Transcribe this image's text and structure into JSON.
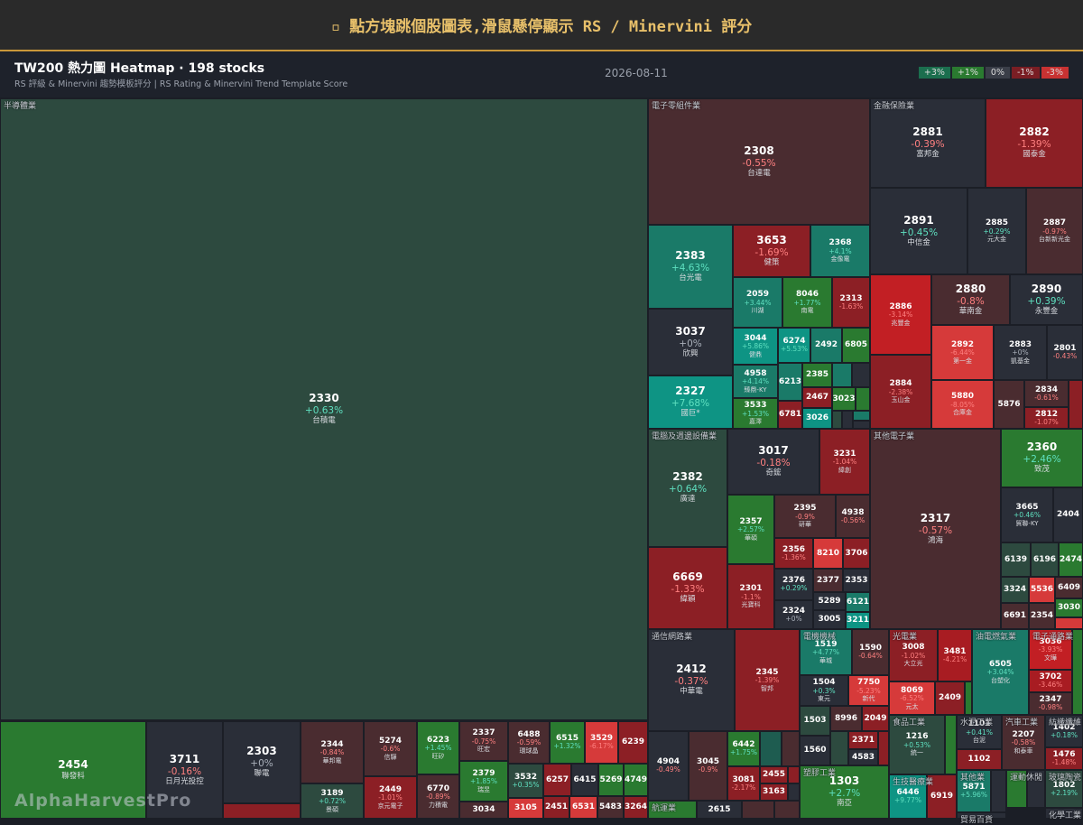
{
  "header": {
    "title": "▫ 點方塊跳個股圖表,滑鼠懸停顯示 RS / Minervini 評分"
  },
  "toolbar": {
    "title": "TW200 熱力圖 Heatmap · 198 stocks",
    "subtitle": "RS 評級 & Minervini 趨勢模板評分 | RS Rating & Minervini Trend Template Score",
    "date": "2026-08-11",
    "legend": [
      {
        "label": "+3%",
        "color": "#1b6e4e"
      },
      {
        "label": "+1%",
        "color": "#2a7a30"
      },
      {
        "label": "0%",
        "color": "#3a3e48"
      },
      {
        "label": "-1%",
        "color": "#7a1e24"
      },
      {
        "label": "-3%",
        "color": "#c83232"
      }
    ]
  },
  "watermark": "AlphaHarvestPro",
  "sectors": [
    {
      "name": "半導體業",
      "tiles": [
        {
          "code": "2330",
          "change": "+0.63%",
          "name": "台積電",
          "color": "#2d4a3f"
        },
        {
          "code": "2454",
          "name": "聯發科",
          "color": "#2a7a30"
        },
        {
          "code": "3711",
          "change": "-0.16%",
          "name": "日月光投控",
          "color": "#2a2e38"
        },
        {
          "code": "2303",
          "change": "+0%",
          "name": "聯電",
          "color": "#2a2e38"
        },
        {
          "color": "#8c1f25"
        },
        {
          "code": "2344",
          "change": "-0.84%",
          "name": "華邦電",
          "color": "#4a2c30"
        },
        {
          "code": "3189",
          "change": "+0.72%",
          "name": "景碩",
          "color": "#2d4a3f"
        },
        {
          "code": "5274",
          "change": "-0.6%",
          "name": "信驊",
          "color": "#4a2c30"
        },
        {
          "code": "2449",
          "change": "-1.01%",
          "name": "京元電子",
          "color": "#8c1f25"
        },
        {
          "code": "6223",
          "change": "+1.45%",
          "name": "旺矽",
          "color": "#2a7a30"
        },
        {
          "code": "6770",
          "change": "-0.89%",
          "name": "力積電",
          "color": "#4a2c30"
        },
        {
          "code": "2337",
          "change": "-0.75%",
          "name": "旺宏",
          "color": "#4a2c30"
        },
        {
          "code": "2379",
          "change": "+1.85%",
          "name": "瑞昱",
          "color": "#2a7a30"
        },
        {
          "code": "3034",
          "color": "#4a2c30"
        },
        {
          "code": "6488",
          "change": "-0.59%",
          "name": "環球晶",
          "color": "#4a2c30"
        },
        {
          "code": "3532",
          "change": "+0.35%",
          "color": "#2d4a3f"
        },
        {
          "code": "3105",
          "color": "#d63a3a"
        },
        {
          "code": "6515",
          "change": "+1.32%",
          "color": "#2a7a30"
        },
        {
          "code": "3529",
          "change": "-6.17%",
          "color": "#d63a3a"
        },
        {
          "code": "6239",
          "color": "#8c1f25"
        },
        {
          "code": "6257",
          "color": "#8c1f25"
        },
        {
          "code": "6415",
          "color": "#2a2e38"
        },
        {
          "code": "5269",
          "color": "#2a7a30"
        },
        {
          "code": "4749",
          "color": "#2a7a30"
        },
        {
          "code": "2451",
          "color": "#8c1f25"
        },
        {
          "code": "6531",
          "color": "#d63a3a"
        },
        {
          "code": "5483",
          "color": "#4a2c30"
        },
        {
          "code": "3264",
          "color": "#8c1f25"
        }
      ]
    },
    {
      "name": "電子零組件業",
      "tiles": [
        {
          "code": "2308",
          "change": "-0.55%",
          "name": "台達電",
          "color": "#4a2c30"
        },
        {
          "code": "2383",
          "change": "+4.63%",
          "name": "台光電",
          "color": "#1a7a68"
        },
        {
          "code": "3653",
          "change": "-1.69%",
          "name": "健策",
          "color": "#8c1f25"
        },
        {
          "code": "2368",
          "change": "+4.1%",
          "name": "金像電",
          "color": "#1a7a68"
        },
        {
          "code": "2059",
          "change": "+3.44%",
          "name": "川湖",
          "color": "#1a7a68"
        },
        {
          "code": "8046",
          "change": "+1.77%",
          "name": "南電",
          "color": "#2a7a30"
        },
        {
          "code": "2313",
          "change": "-1.63%",
          "color": "#8c1f25"
        },
        {
          "code": "3037",
          "change": "+0%",
          "name": "欣興",
          "color": "#2a2e38"
        },
        {
          "code": "2327",
          "change": "+7.68%",
          "name": "國巨*",
          "color": "#0e9484"
        },
        {
          "code": "3044",
          "change": "+5.86%",
          "name": "健鼎",
          "color": "#0e9484"
        },
        {
          "code": "6274",
          "change": "+5.53%",
          "color": "#0e9484"
        },
        {
          "code": "2492",
          "color": "#1a7a68"
        },
        {
          "code": "6805",
          "color": "#2a7a30"
        },
        {
          "code": "4958",
          "change": "+4.14%",
          "name": "臻鼎-KY",
          "color": "#1a7a68"
        },
        {
          "code": "3533",
          "change": "+1.53%",
          "name": "嘉澤",
          "color": "#2a7a30"
        },
        {
          "code": "6213",
          "color": "#1a7a68"
        },
        {
          "code": "2385",
          "color": "#2a7a30"
        },
        {
          "color": "#1a7a68"
        },
        {
          "color": "#2a2e38"
        },
        {
          "code": "2467",
          "color": "#8c1f25"
        },
        {
          "code": "3023",
          "color": "#2a7a30"
        },
        {
          "color": "#2a7a30"
        },
        {
          "code": "6781",
          "color": "#8c1f25"
        },
        {
          "code": "3026",
          "color": "#0e9484"
        },
        {
          "color": "#2d4a3f"
        },
        {
          "color": "#2a2e38"
        },
        {
          "color": "#1a7a68"
        },
        {
          "color": "#2a2e38"
        }
      ]
    },
    {
      "name": "金融保險業",
      "tiles": [
        {
          "code": "2881",
          "change": "-0.39%",
          "name": "富邦金",
          "color": "#2a2e38"
        },
        {
          "code": "2882",
          "change": "-1.39%",
          "name": "國泰金",
          "color": "#8c1f25"
        },
        {
          "code": "2891",
          "change": "+0.45%",
          "name": "中信金",
          "color": "#2a2e38"
        },
        {
          "code": "2885",
          "change": "+0.29%",
          "name": "元大金",
          "color": "#2a2e38"
        },
        {
          "code": "2887",
          "change": "-0.97%",
          "name": "台新新光金",
          "color": "#4a2c30"
        },
        {
          "code": "2886",
          "change": "-3.14%",
          "name": "兆豐金",
          "color": "#c21f24"
        },
        {
          "code": "2880",
          "change": "-0.8%",
          "name": "華南金",
          "color": "#4a2c30"
        },
        {
          "code": "2890",
          "change": "+0.39%",
          "name": "永豐金",
          "color": "#2a2e38"
        },
        {
          "code": "2884",
          "change": "-2.38%",
          "name": "玉山金",
          "color": "#8c1f25"
        },
        {
          "code": "2892",
          "change": "-6.44%",
          "name": "第一金",
          "color": "#d63a3a"
        },
        {
          "code": "2883",
          "change": "+0%",
          "name": "凱基金",
          "color": "#2a2e38"
        },
        {
          "code": "2801",
          "change": "-0.43%",
          "color": "#2a2e38"
        },
        {
          "code": "5880",
          "change": "-8.05%",
          "name": "合庫金",
          "color": "#d63a3a"
        },
        {
          "code": "5876",
          "color": "#4a2c30"
        },
        {
          "code": "2834",
          "change": "-0.61%",
          "color": "#4a2c30"
        },
        {
          "code": "2812",
          "change": "-1.07%",
          "color": "#8c1f25"
        },
        {
          "color": "#8c1f25"
        }
      ]
    },
    {
      "name": "電腦及週邊設備業",
      "tiles": [
        {
          "code": "2382",
          "change": "+0.64%",
          "name": "廣達",
          "color": "#2d4a3f"
        },
        {
          "code": "6669",
          "change": "-1.33%",
          "name": "緯穎",
          "color": "#8c1f25"
        },
        {
          "code": "3017",
          "change": "-0.18%",
          "name": "奇鋐",
          "color": "#2a2e38"
        },
        {
          "code": "3231",
          "change": "-1.04%",
          "name": "緯創",
          "color": "#8c1f25"
        },
        {
          "code": "2357",
          "change": "+2.57%",
          "name": "華碩",
          "color": "#2a7a30"
        },
        {
          "code": "2301",
          "change": "-1.1%",
          "name": "光寶科",
          "color": "#8c1f25"
        },
        {
          "code": "2395",
          "change": "-0.9%",
          "name": "研華",
          "color": "#4a2c30"
        },
        {
          "code": "4938",
          "change": "-0.56%",
          "color": "#4a2c30"
        },
        {
          "code": "2356",
          "change": "-1.36%",
          "color": "#8c1f25"
        },
        {
          "code": "8210",
          "color": "#d63a3a"
        },
        {
          "code": "3706",
          "color": "#8c1f25"
        },
        {
          "code": "2376",
          "change": "+0.29%",
          "color": "#2a2e38"
        },
        {
          "code": "2377",
          "color": "#4a2c30"
        },
        {
          "code": "2353",
          "color": "#2a2e38"
        },
        {
          "code": "5289",
          "color": "#2a2e38"
        },
        {
          "code": "6121",
          "color": "#1a7a68"
        },
        {
          "code": "2324",
          "change": "+0%",
          "color": "#2a2e38"
        },
        {
          "code": "3005",
          "color": "#2a2e38"
        },
        {
          "code": "3211",
          "color": "#0e9484"
        }
      ]
    },
    {
      "name": "其他電子業",
      "tiles": [
        {
          "code": "2317",
          "change": "-0.57%",
          "name": "鴻海",
          "color": "#4a2c30"
        },
        {
          "code": "2360",
          "change": "+2.46%",
          "name": "致茂",
          "color": "#2a7a30"
        },
        {
          "code": "3665",
          "change": "+0.46%",
          "name": "貿聯-KY",
          "color": "#2a2e38"
        },
        {
          "code": "2404",
          "color": "#2a2e38"
        },
        {
          "code": "6139",
          "color": "#2d4a3f"
        },
        {
          "code": "6196",
          "color": "#2d4a3f"
        },
        {
          "code": "2474",
          "color": "#2a7a30"
        },
        {
          "code": "3324",
          "color": "#2d4a3f"
        },
        {
          "code": "5536",
          "color": "#d63a3a"
        },
        {
          "code": "6409",
          "color": "#4a2c30"
        },
        {
          "code": "3030",
          "color": "#2a7a30"
        },
        {
          "code": "6691",
          "color": "#4a2c30"
        },
        {
          "code": "2354",
          "color": "#4a2c30"
        },
        {
          "color": "#d63a3a"
        }
      ]
    },
    {
      "name": "通信網路業",
      "tiles": [
        {
          "code": "2412",
          "change": "-0.37%",
          "name": "中華電",
          "color": "#2a2e38"
        },
        {
          "code": "2345",
          "change": "-1.39%",
          "name": "智邦",
          "color": "#8c1f25"
        },
        {
          "code": "4904",
          "change": "-0.49%",
          "color": "#2a2e38"
        },
        {
          "code": "3045",
          "change": "-0.9%",
          "color": "#4a2c30"
        },
        {
          "code": "6442",
          "change": "+1.75%",
          "color": "#2a7a30"
        },
        {
          "color": "#1e5c50"
        },
        {
          "color": "#4a2c30"
        },
        {
          "code": "3081",
          "change": "-2.17%",
          "color": "#8c1f25"
        },
        {
          "code": "2455",
          "color": "#8c1f25"
        },
        {
          "color": "#8c1f25"
        },
        {
          "code": "3163",
          "color": "#8c1f25"
        },
        {
          "color": "#2a2e38"
        }
      ]
    },
    {
      "name": "航運業",
      "tiles": [
        {
          "color": "#2a7a30"
        },
        {
          "code": "2615",
          "color": "#2a2e38"
        },
        {
          "color": "#4a2c30"
        },
        {
          "color": "#4a2c30"
        }
      ]
    },
    {
      "name": "電機機械",
      "tiles": [
        {
          "code": "1519",
          "change": "+4.77%",
          "name": "華城",
          "color": "#1a7a68"
        },
        {
          "code": "1590",
          "change": "-0.64%",
          "color": "#4a2c30"
        },
        {
          "code": "1504",
          "change": "+0.3%",
          "name": "東元",
          "color": "#2a2e38"
        },
        {
          "code": "7750",
          "change": "-5.23%",
          "name": "新代",
          "color": "#d63a3a"
        },
        {
          "code": "1503",
          "color": "#2d4a3f"
        },
        {
          "code": "8996",
          "color": "#4a2c30"
        },
        {
          "code": "2049",
          "color": "#8c1f25"
        },
        {
          "code": "1560",
          "color": "#2a2e38"
        },
        {
          "color": "#2d4a3f"
        },
        {
          "code": "2371",
          "color": "#8c1f25"
        },
        {
          "code": "4583",
          "color": "#2a2e38"
        },
        {
          "color": "#8c1f25"
        }
      ]
    },
    {
      "name": "塑膠工業",
      "tiles": [
        {
          "code": "1303",
          "change": "+2.7%",
          "name": "南亞",
          "color": "#2a7a30"
        }
      ]
    },
    {
      "name": "光電業",
      "tiles": [
        {
          "code": "3008",
          "change": "-1.02%",
          "name": "大立光",
          "color": "#8c1f25"
        },
        {
          "code": "3481",
          "change": "-4.21%",
          "color": "#a81c22"
        },
        {
          "code": "8069",
          "change": "-6.52%",
          "name": "元太",
          "color": "#d63a3a"
        },
        {
          "code": "2409",
          "color": "#8c1f25"
        },
        {
          "color": "#2a7a30"
        }
      ]
    },
    {
      "name": "油電燃氣業",
      "tiles": [
        {
          "code": "6505",
          "change": "+3.04%",
          "name": "台塑化",
          "color": "#1a7a68"
        }
      ]
    },
    {
      "name": "電子通路業",
      "tiles": [
        {
          "code": "3036",
          "change": "-3.93%",
          "name": "文曄",
          "color": "#c21f24"
        },
        {
          "code": "3702",
          "change": "-3.46%",
          "color": "#a81c22"
        },
        {
          "code": "2347",
          "change": "-0.98%",
          "color": "#4a2c30"
        },
        {
          "color": "#2a7a30"
        }
      ]
    },
    {
      "name": "食品工業",
      "tiles": [
        {
          "code": "1216",
          "change": "+0.53%",
          "name": "統一",
          "color": "#2d4a3f"
        },
        {
          "color": "#2a7a30"
        }
      ]
    },
    {
      "name": "生技醫療業",
      "tiles": [
        {
          "code": "6446",
          "change": "+9.77%",
          "color": "#0e9484"
        },
        {
          "code": "6919",
          "color": "#8c1f25"
        }
      ]
    },
    {
      "name": "水泥工業",
      "tiles": [
        {
          "code": "1101",
          "change": "+0.41%",
          "name": "台泥",
          "color": "#2a2e38"
        },
        {
          "code": "1102",
          "color": "#8c1f25"
        }
      ]
    },
    {
      "name": "汽車工業",
      "tiles": [
        {
          "code": "2207",
          "change": "-0.58%",
          "name": "和泰車",
          "color": "#4a2c30"
        }
      ]
    },
    {
      "name": "紡織纖維",
      "tiles": [
        {
          "code": "1402",
          "change": "+0.18%",
          "color": "#2a2e38"
        },
        {
          "code": "1476",
          "change": "-1.48%",
          "color": "#8c1f25"
        }
      ]
    },
    {
      "name": "其他業",
      "tiles": [
        {
          "code": "5871",
          "change": "+5.96%",
          "color": "#1a7a68"
        },
        {
          "color": "#2a2e38"
        }
      ]
    },
    {
      "name": "運動休閒",
      "tiles": [
        {
          "color": "#2a7a30"
        },
        {
          "color": "#2a2e38"
        }
      ]
    },
    {
      "name": "玻璃陶瓷",
      "tiles": [
        {
          "code": "1802",
          "change": "+2.19%",
          "color": "#2d4a3f"
        }
      ]
    },
    {
      "name": "貿易百貨",
      "tiles": [
        {
          "color": "#2a2e38"
        }
      ]
    },
    {
      "name": "化學工業",
      "tiles": [
        {
          "color": "#2a2e38"
        }
      ]
    }
  ]
}
